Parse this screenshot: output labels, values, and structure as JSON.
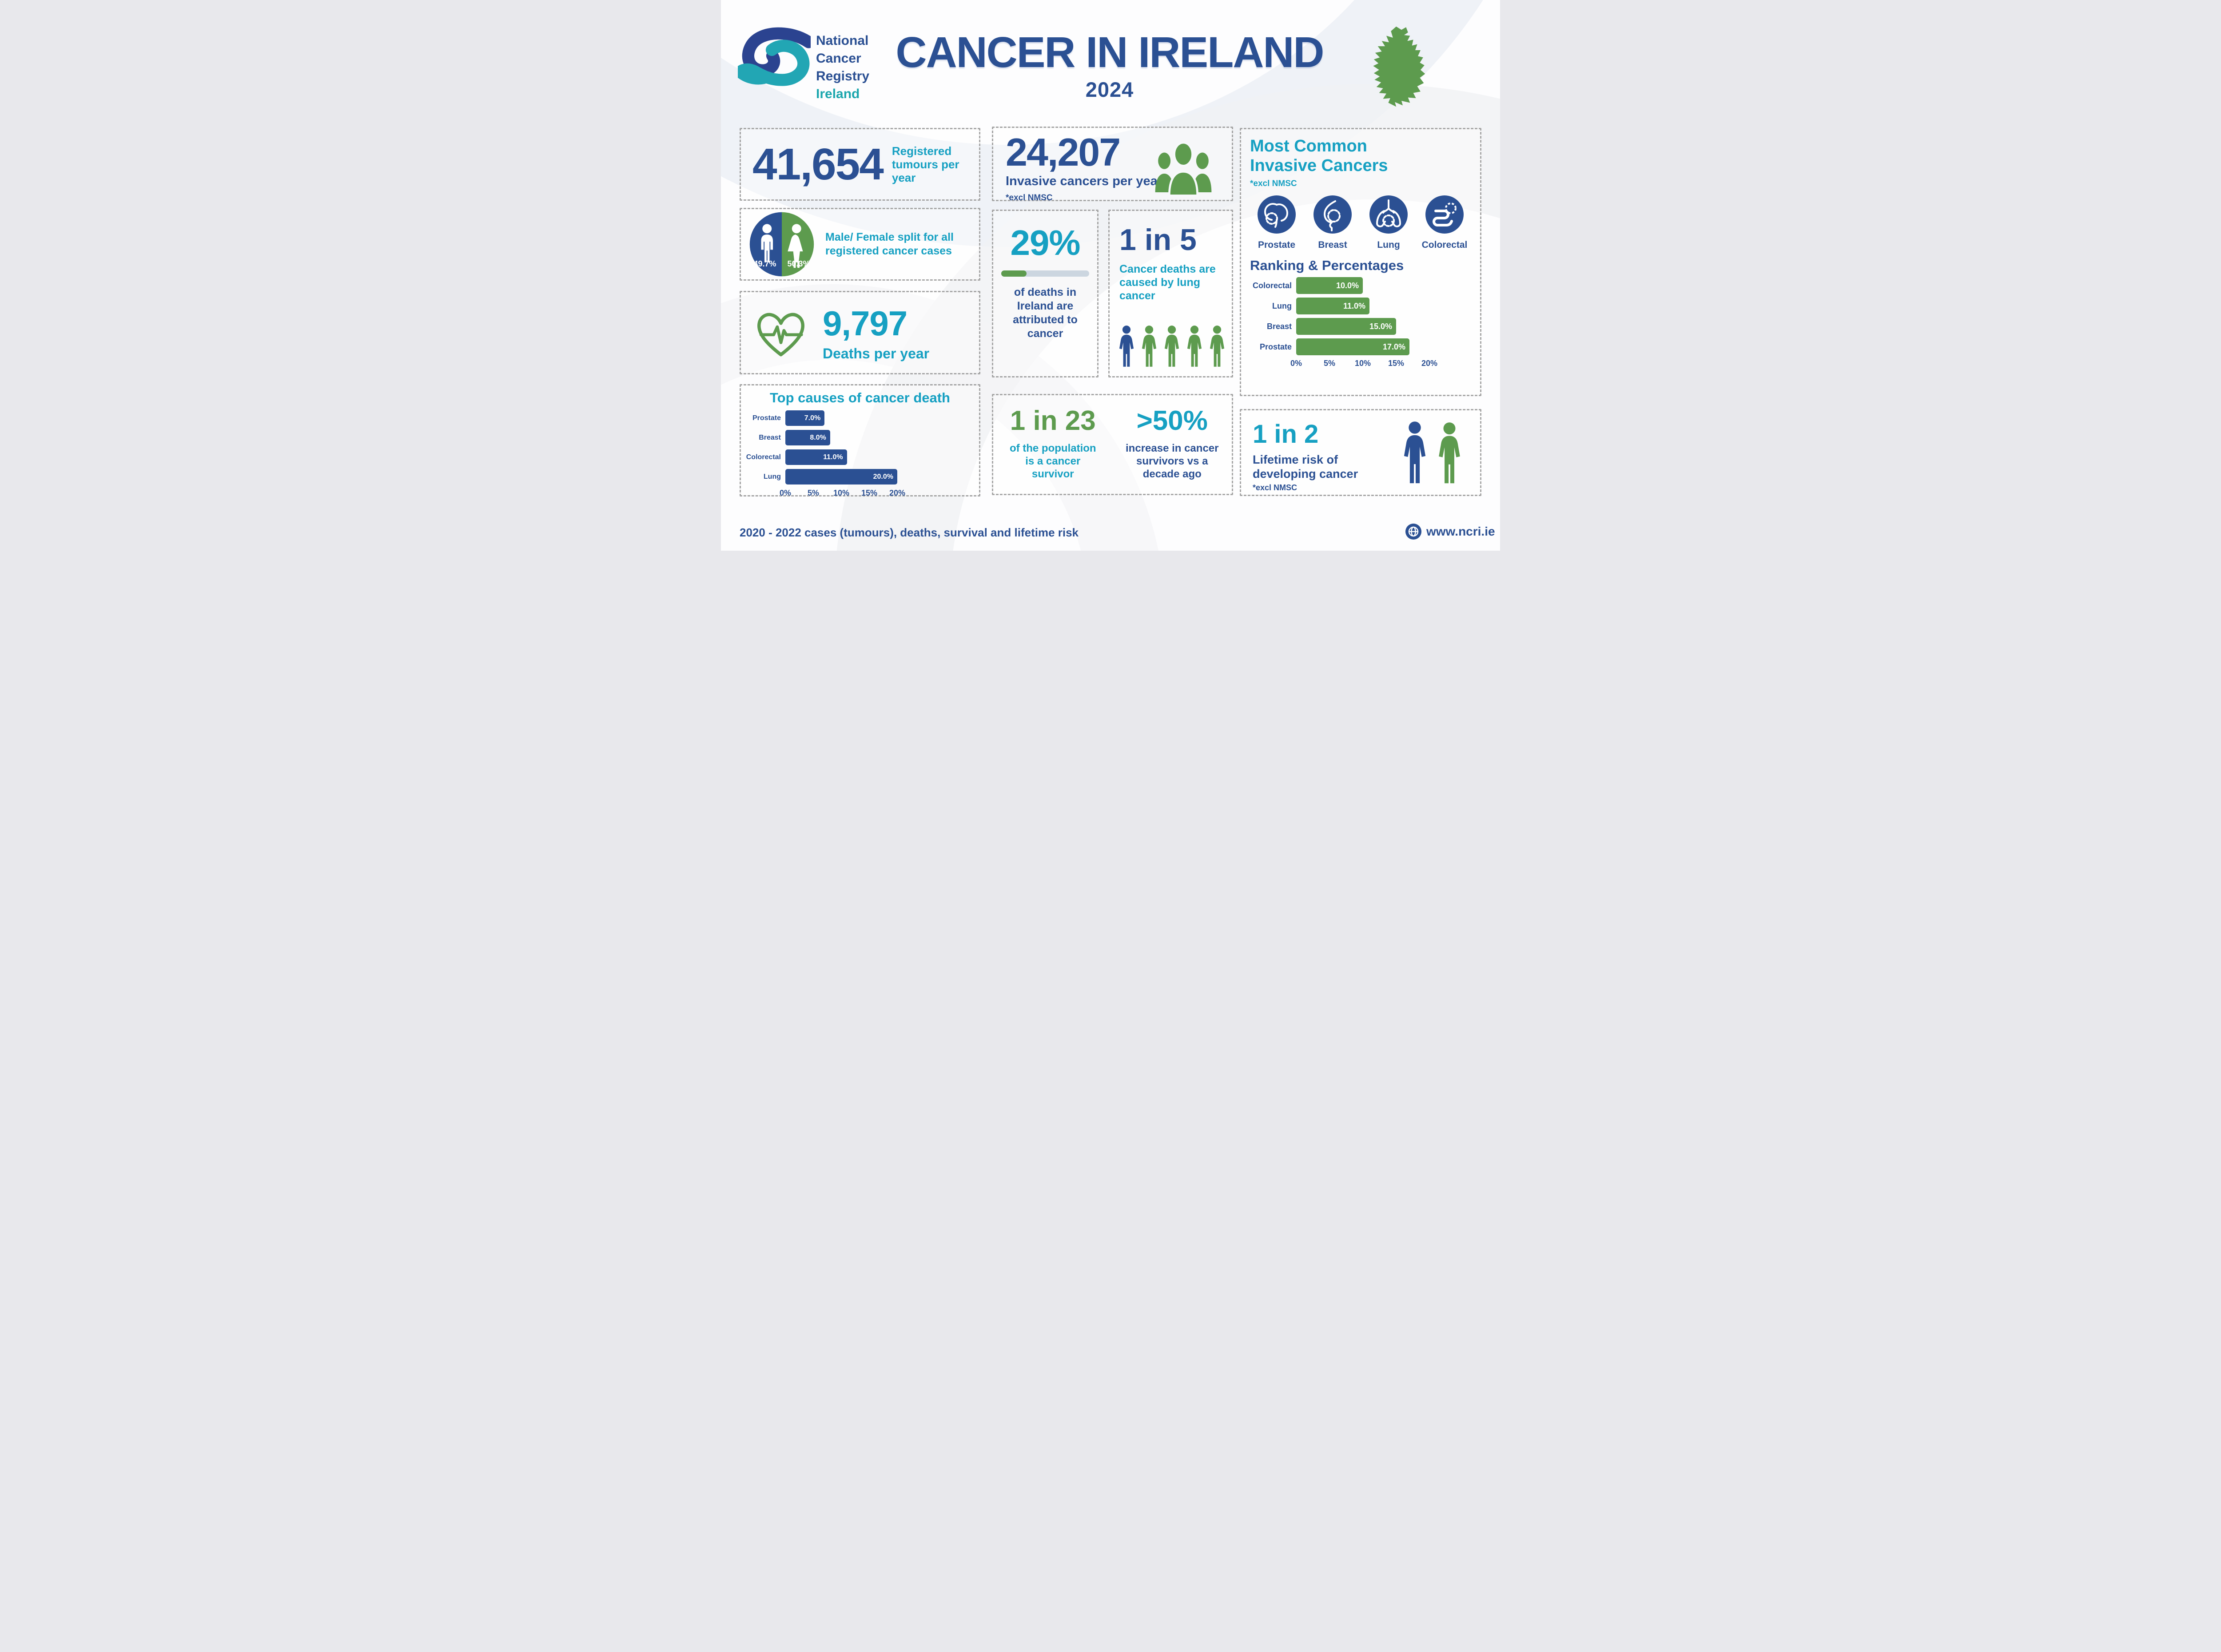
{
  "header": {
    "logo_lines": [
      "National",
      "Cancer",
      "Registry",
      "Ireland"
    ],
    "title": "CANCER IN IRELAND",
    "year": "2024"
  },
  "stats": {
    "registered": {
      "value": "41,654",
      "label": "Registered tumours per year"
    },
    "male_female": {
      "label": "Male/ Female split for all registered cancer cases",
      "male_pct": "49.7%",
      "female_pct": "50.3%"
    },
    "deaths": {
      "value": "9,797",
      "label": "Deaths per year"
    },
    "invasive": {
      "value": "24,207",
      "label": "Invasive cancers per year",
      "note": "*excl NMSC"
    },
    "deaths_attributed": {
      "value": "29%",
      "label": "of deaths in Ireland are attributed to cancer"
    },
    "lung_deaths": {
      "value": "1 in 5",
      "label": "Cancer deaths are caused by lung cancer"
    },
    "most_common": {
      "title": "Most Common Invasive Cancers",
      "note": "*excl NMSC",
      "organs": [
        "Prostate",
        "Breast",
        "Lung",
        "Colorectal"
      ],
      "ranking_title": "Ranking & Percentages"
    },
    "survivor": {
      "value": "1 in 23",
      "label": "of the population is a cancer survivor"
    },
    "survivor_increase": {
      "value": ">50%",
      "label": "increase in cancer survivors vs a decade ago"
    },
    "lifetime_risk": {
      "value": "1 in 2",
      "label": "Lifetime risk of developing cancer",
      "note": "*excl NMSC"
    }
  },
  "footer": {
    "left": "2020 - 2022 cases (tumours), deaths, survival and lifetime risk",
    "website": "www.ncri.ie"
  },
  "colors": {
    "navy": "#2b5093",
    "teal": "#16a0c2",
    "green": "#5d9b4e",
    "logo_teal": "#1ba6ad",
    "progress_track": "#ccd6e0"
  },
  "chart_data": [
    {
      "id": "top_causes",
      "type": "bar",
      "orientation": "horizontal",
      "title": "Top causes of cancer death",
      "categories": [
        "Prostate",
        "Breast",
        "Colorectal",
        "Lung"
      ],
      "values": [
        7.0,
        8.0,
        11.0,
        20.0
      ],
      "value_labels": [
        "7.0%",
        "8.0%",
        "11.0%",
        "20.0%"
      ],
      "xlabel": "",
      "ylabel": "",
      "xlim": [
        0,
        20
      ],
      "ticks": [
        "0%",
        "5%",
        "10%",
        "15%",
        "20%"
      ],
      "bar_color": "#2b5093",
      "grid": false,
      "legend": false
    },
    {
      "id": "ranking",
      "type": "bar",
      "orientation": "horizontal",
      "title": "Ranking & Percentages",
      "categories": [
        "Colorectal",
        "Lung",
        "Breast",
        "Prostate"
      ],
      "values": [
        10.0,
        11.0,
        15.0,
        17.0
      ],
      "value_labels": [
        "10.0%",
        "11.0%",
        "15.0%",
        "17.0%"
      ],
      "xlabel": "",
      "ylabel": "",
      "xlim": [
        0,
        20
      ],
      "ticks": [
        "0%",
        "5%",
        "10%",
        "15%",
        "20%"
      ],
      "bar_color": "#5d9b4e",
      "grid": false,
      "legend": false
    },
    {
      "id": "male_female_split",
      "type": "pie",
      "categories": [
        "Male",
        "Female"
      ],
      "values": [
        49.7,
        50.3
      ],
      "value_labels": [
        "49.7%",
        "50.3%"
      ],
      "colors": [
        "#2b5093",
        "#5d9b4e"
      ]
    },
    {
      "id": "cancer_deaths_progress",
      "type": "bar",
      "categories": [
        "share of deaths attributed to cancer"
      ],
      "values": [
        29
      ],
      "xlim": [
        0,
        100
      ],
      "bar_color": "#5d9b4e"
    }
  ]
}
